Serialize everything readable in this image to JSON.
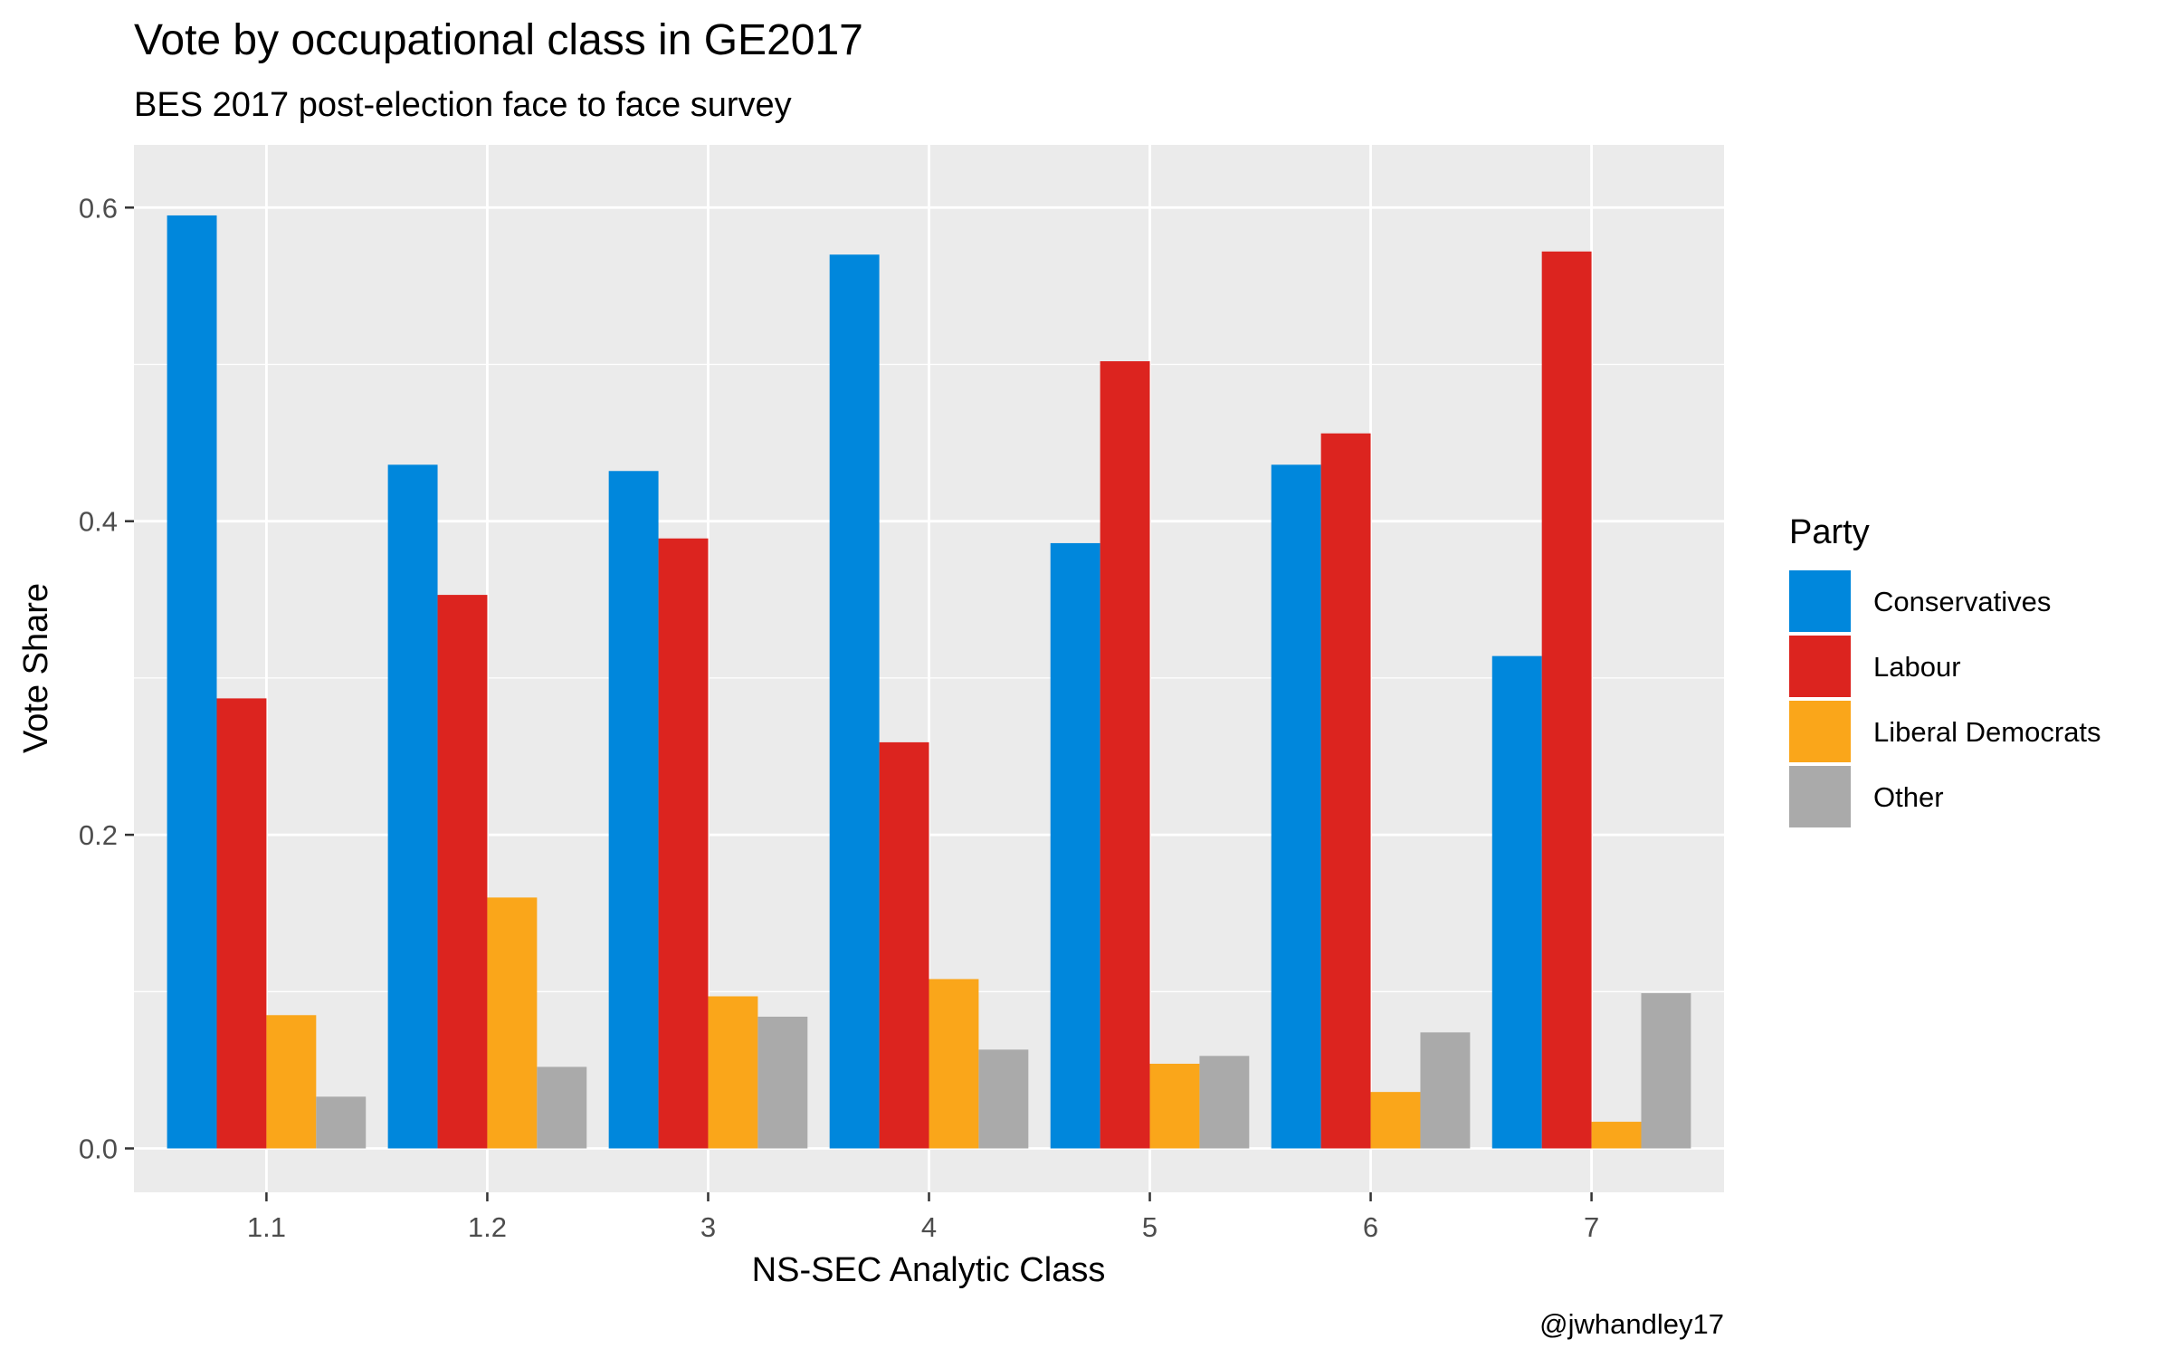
{
  "chart_data": {
    "type": "bar",
    "title": "Vote by occupational class in GE2017",
    "subtitle": "BES 2017 post-election face to face survey",
    "xlabel": "NS-SEC Analytic Class",
    "ylabel": "Vote Share",
    "caption": "@jwhandley17",
    "categories": [
      "1.1",
      "1.2",
      "3",
      "4",
      "5",
      "6",
      "7"
    ],
    "ylim": [
      -0.028,
      0.64
    ],
    "yticks": [
      0.0,
      0.2,
      0.4,
      0.6
    ],
    "ytick_labels": [
      "0.0",
      "0.2",
      "0.4",
      "0.6"
    ],
    "grid": true,
    "legend": {
      "title": "Party",
      "position": "right"
    },
    "series": [
      {
        "name": "Conservatives",
        "color": "#0087dc",
        "values": [
          0.595,
          0.436,
          0.432,
          0.57,
          0.386,
          0.436,
          0.314
        ]
      },
      {
        "name": "Labour",
        "color": "#dc241f",
        "values": [
          0.287,
          0.353,
          0.389,
          0.259,
          0.502,
          0.456,
          0.572
        ]
      },
      {
        "name": "Liberal Democrats",
        "color": "#faa61a",
        "values": [
          0.085,
          0.16,
          0.097,
          0.108,
          0.054,
          0.036,
          0.017
        ]
      },
      {
        "name": "Other",
        "color": "#aaaaaa",
        "values": [
          0.033,
          0.052,
          0.084,
          0.063,
          0.059,
          0.074,
          0.099
        ]
      }
    ]
  }
}
